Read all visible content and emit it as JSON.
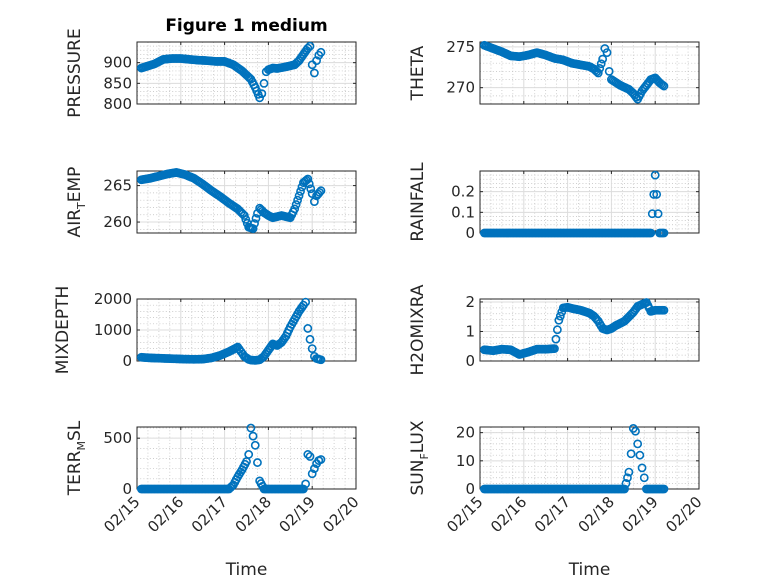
{
  "figure": {
    "title": "Figure 1 medium"
  },
  "colors": {
    "marker": "#0072BD",
    "axes": "#262626",
    "grid": "#dcdcdc"
  },
  "chart_data": [
    {
      "id": "pressure",
      "type": "scatter",
      "title": "Figure 1 medium",
      "ylabel": "PRESSURE",
      "ylim": [
        800,
        950
      ],
      "yticks": [
        800,
        850,
        900
      ],
      "ytick_labels": [
        "800",
        "850",
        "900"
      ],
      "xlim": [
        "02/15",
        "02/20"
      ],
      "xticks": [
        "02/15",
        "02/16",
        "02/17",
        "02/18",
        "02/19",
        "02/20"
      ],
      "show_xticks": false,
      "x": [
        0.1,
        0.4,
        0.6,
        0.8,
        1.0,
        1.2,
        1.4,
        1.6,
        1.8,
        2.0,
        2.2,
        2.4,
        2.6,
        2.7,
        2.8,
        2.85,
        2.9,
        2.95,
        3.0,
        3.1,
        3.2,
        3.4,
        3.6,
        3.7,
        3.8,
        3.9,
        3.95,
        4.0,
        4.05,
        4.1,
        4.15,
        4.2
      ],
      "y": [
        887,
        897,
        908,
        910,
        910,
        908,
        906,
        905,
        903,
        903,
        895,
        880,
        860,
        840,
        815,
        825,
        850,
        878,
        883,
        887,
        886,
        890,
        895,
        905,
        920,
        935,
        940,
        895,
        875,
        905,
        918,
        925
      ]
    },
    {
      "id": "theta",
      "type": "scatter",
      "title": "",
      "ylabel": "THETA",
      "ylim": [
        268,
        275.6
      ],
      "yticks": [
        270,
        275
      ],
      "ytick_labels": [
        "270",
        "275"
      ],
      "xlim": [
        "02/15",
        "02/20"
      ],
      "xticks": [
        "02/15",
        "02/16",
        "02/17",
        "02/18",
        "02/19",
        "02/20"
      ],
      "show_xticks": false,
      "x": [
        0.1,
        0.3,
        0.5,
        0.7,
        0.9,
        1.1,
        1.3,
        1.5,
        1.7,
        1.9,
        2.1,
        2.3,
        2.5,
        2.6,
        2.7,
        2.8,
        2.85,
        2.9,
        2.95,
        3.0,
        3.2,
        3.4,
        3.5,
        3.6,
        3.7,
        3.8,
        3.9,
        4.0,
        4.1,
        4.2
      ],
      "y": [
        275.2,
        274.8,
        274.4,
        273.9,
        273.8,
        274.0,
        274.3,
        274.0,
        273.6,
        273.4,
        273.0,
        272.8,
        272.6,
        272.3,
        271.8,
        273.5,
        274.8,
        274.3,
        272.0,
        271.0,
        270.3,
        269.8,
        269.3,
        268.6,
        269.6,
        270.3,
        271.0,
        271.2,
        270.6,
        270.2
      ]
    },
    {
      "id": "air_temp",
      "type": "scatter",
      "title": "",
      "ylabel_parts": [
        "AIR",
        "T",
        "EMP"
      ],
      "ylim": [
        258.5,
        267
      ],
      "yticks": [
        260,
        265
      ],
      "ytick_labels": [
        "260",
        "265"
      ],
      "xlim": [
        "02/15",
        "02/20"
      ],
      "xticks": [
        "02/15",
        "02/16",
        "02/17",
        "02/18",
        "02/19",
        "02/20"
      ],
      "show_xticks": false,
      "x": [
        0.1,
        0.3,
        0.5,
        0.7,
        0.9,
        1.1,
        1.3,
        1.5,
        1.7,
        1.9,
        2.1,
        2.3,
        2.45,
        2.55,
        2.65,
        2.75,
        2.8,
        2.9,
        3.0,
        3.1,
        3.3,
        3.5,
        3.6,
        3.7,
        3.8,
        3.9,
        4.0,
        4.05,
        4.1,
        4.2
      ],
      "y": [
        265.8,
        266.0,
        266.3,
        266.6,
        266.8,
        266.5,
        266.0,
        265.2,
        264.3,
        263.5,
        262.6,
        261.8,
        260.9,
        259.3,
        259.1,
        261.2,
        261.9,
        261.3,
        260.9,
        260.6,
        260.9,
        260.6,
        261.8,
        263.6,
        265.4,
        265.9,
        263.9,
        262.8,
        263.6,
        264.3
      ]
    },
    {
      "id": "rainfall",
      "type": "scatter",
      "title": "",
      "ylabel": "RAINFALL",
      "ylim": [
        0,
        0.3
      ],
      "yticks": [
        0,
        0.1,
        0.2
      ],
      "ytick_labels": [
        "0",
        "0.1",
        "0.2"
      ],
      "xlim": [
        "02/15",
        "02/20"
      ],
      "xticks": [
        "02/15",
        "02/16",
        "02/17",
        "02/18",
        "02/19",
        "02/20"
      ],
      "show_xticks": false,
      "x": [
        0.1,
        0.3,
        0.5,
        0.7,
        0.9,
        1.1,
        1.3,
        1.5,
        1.7,
        1.9,
        2.1,
        2.3,
        2.5,
        2.7,
        2.9,
        3.1,
        3.3,
        3.5,
        3.7,
        3.8,
        3.9,
        4.0,
        4.1,
        4.2
      ],
      "y": [
        0,
        0,
        0,
        0,
        0,
        0,
        0,
        0,
        0,
        0,
        0,
        0,
        0,
        0,
        0,
        0,
        0,
        0,
        0,
        0,
        0,
        0.28,
        0,
        0
      ]
    },
    {
      "id": "mixdepth",
      "type": "scatter",
      "title": "",
      "ylabel": "MIXDEPTH",
      "ylim": [
        0,
        2000
      ],
      "yticks": [
        0,
        1000,
        2000
      ],
      "ytick_labels": [
        "0",
        "1000",
        "2000"
      ],
      "xlim": [
        "02/15",
        "02/20"
      ],
      "xticks": [
        "02/15",
        "02/16",
        "02/17",
        "02/18",
        "02/19",
        "02/20"
      ],
      "show_xticks": false,
      "x": [
        0.1,
        0.3,
        0.5,
        0.7,
        0.9,
        1.1,
        1.3,
        1.5,
        1.7,
        1.9,
        2.1,
        2.3,
        2.45,
        2.55,
        2.6,
        2.7,
        2.8,
        2.9,
        3.0,
        3.1,
        3.2,
        3.3,
        3.4,
        3.5,
        3.6,
        3.7,
        3.8,
        3.85,
        3.9,
        3.95,
        4.0,
        4.05,
        4.1,
        4.2
      ],
      "y": [
        120,
        100,
        90,
        80,
        70,
        60,
        55,
        60,
        100,
        180,
        300,
        450,
        150,
        50,
        30,
        20,
        40,
        150,
        350,
        550,
        500,
        600,
        800,
        1100,
        1350,
        1600,
        1800,
        1900,
        1050,
        700,
        400,
        150,
        80,
        40
      ]
    },
    {
      "id": "h2omixra",
      "type": "scatter",
      "title": "",
      "ylabel": "H2OMIXRA",
      "ylim": [
        0,
        2.1
      ],
      "yticks": [
        0,
        1,
        2
      ],
      "ytick_labels": [
        "0",
        "1",
        "2"
      ],
      "xlim": [
        "02/15",
        "02/20"
      ],
      "xticks": [
        "02/15",
        "02/16",
        "02/17",
        "02/18",
        "02/19",
        "02/20"
      ],
      "show_xticks": false,
      "x": [
        0.1,
        0.3,
        0.5,
        0.7,
        0.8,
        0.9,
        1.1,
        1.3,
        1.5,
        1.7,
        1.8,
        1.9,
        2.0,
        2.1,
        2.3,
        2.5,
        2.6,
        2.7,
        2.8,
        2.9,
        3.0,
        3.1,
        3.3,
        3.5,
        3.6,
        3.7,
        3.8,
        3.9,
        4.0,
        4.1,
        4.2
      ],
      "y": [
        0.38,
        0.35,
        0.4,
        0.38,
        0.3,
        0.22,
        0.3,
        0.4,
        0.4,
        0.42,
        1.38,
        1.8,
        1.82,
        1.78,
        1.72,
        1.62,
        1.52,
        1.35,
        1.1,
        1.05,
        1.1,
        1.2,
        1.35,
        1.65,
        1.85,
        1.92,
        1.98,
        1.68,
        1.72,
        1.72,
        1.72
      ]
    },
    {
      "id": "terr_msl",
      "type": "scatter",
      "title": "",
      "ylabel_parts": [
        "TERR",
        "M",
        "SL"
      ],
      "ylim": [
        0,
        610
      ],
      "yticks": [
        0,
        500
      ],
      "ytick_labels": [
        "0",
        "500"
      ],
      "xlim": [
        "02/15",
        "02/20"
      ],
      "xticks": [
        "02/15",
        "02/16",
        "02/17",
        "02/18",
        "02/19",
        "02/20"
      ],
      "show_xticks": true,
      "xtick_labels": [
        "02/15",
        "02/16",
        "02/17",
        "02/18",
        "02/19",
        "02/20"
      ],
      "xlabel": "Time",
      "x": [
        0.1,
        0.3,
        0.5,
        0.7,
        0.9,
        1.1,
        1.3,
        1.5,
        1.7,
        1.9,
        2.1,
        2.2,
        2.3,
        2.4,
        2.5,
        2.55,
        2.6,
        2.65,
        2.7,
        2.75,
        2.8,
        2.9,
        3.0,
        3.1,
        3.3,
        3.5,
        3.6,
        3.7,
        3.8,
        3.85,
        3.9,
        3.95,
        4.0,
        4.05,
        4.1,
        4.15,
        4.2
      ],
      "y": [
        0,
        0,
        0,
        0,
        0,
        0,
        0,
        0,
        0,
        0,
        0,
        40,
        120,
        190,
        270,
        340,
        600,
        520,
        430,
        260,
        80,
        0,
        0,
        0,
        0,
        0,
        0,
        0,
        0,
        50,
        340,
        320,
        150,
        200,
        250,
        280,
        290
      ]
    },
    {
      "id": "sun_flux",
      "type": "scatter",
      "title": "",
      "ylabel_parts": [
        "SUN",
        "F",
        "LUX"
      ],
      "ylim": [
        0,
        22
      ],
      "yticks": [
        0,
        10,
        20
      ],
      "ytick_labels": [
        "0",
        "10",
        "20"
      ],
      "xlim": [
        "02/15",
        "02/20"
      ],
      "xticks": [
        "02/15",
        "02/16",
        "02/17",
        "02/18",
        "02/19",
        "02/20"
      ],
      "show_xticks": true,
      "xtick_labels": [
        "02/15",
        "02/16",
        "02/17",
        "02/18",
        "02/19",
        "02/20"
      ],
      "xlabel": "Time",
      "x": [
        0.1,
        0.3,
        0.5,
        0.7,
        0.9,
        1.1,
        1.3,
        1.5,
        1.7,
        1.9,
        2.1,
        2.3,
        2.5,
        2.7,
        2.9,
        3.1,
        3.3,
        3.4,
        3.45,
        3.5,
        3.55,
        3.6,
        3.65,
        3.7,
        3.75,
        3.8,
        3.9,
        4.0,
        4.1,
        4.2
      ],
      "y": [
        0,
        0,
        0,
        0,
        0,
        0,
        0,
        0,
        0,
        0,
        0,
        0,
        0,
        0,
        0,
        0,
        0,
        6,
        12.5,
        21.5,
        20.5,
        16,
        12,
        7.5,
        4,
        0,
        0,
        0,
        0,
        0
      ]
    }
  ]
}
